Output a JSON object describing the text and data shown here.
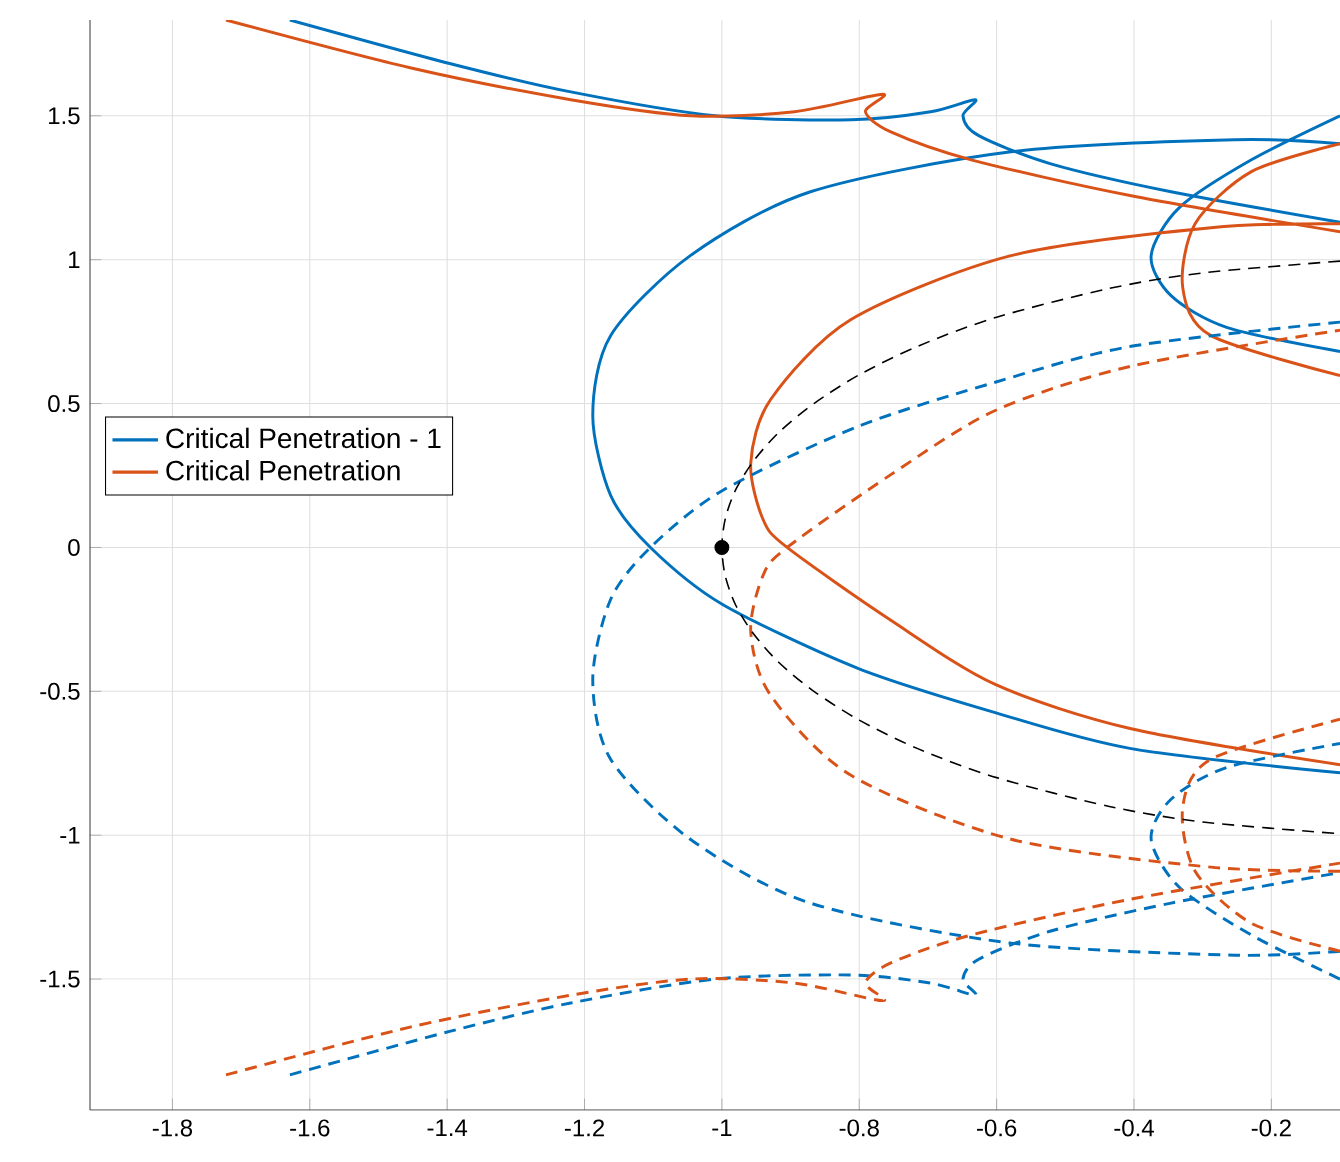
{
  "chart_data": {
    "type": "line",
    "xlim": [
      -1.92,
      -0.1
    ],
    "ylim": [
      -1.955,
      1.833
    ],
    "xticks": [
      -1.8,
      -1.6,
      -1.4,
      -1.2,
      -1,
      -0.8,
      -0.6,
      -0.4,
      -0.2
    ],
    "yticks": [
      -1.5,
      -1,
      -0.5,
      0,
      0.5,
      1,
      1.5
    ],
    "grid": true,
    "legend": "left",
    "series": [
      {
        "name": "Critical Penetration - 1",
        "line_style": "solid",
        "color": "#0072bd",
        "x": [
          -1.629,
          -1.395,
          -1.22,
          -1.01,
          -0.812,
          -0.696,
          -0.631,
          -0.649,
          -0.626,
          -0.521,
          -0.346,
          -0.1,
          null,
          -0.1,
          -0.253,
          -0.579,
          -0.871,
          -1.046,
          -1.162,
          -1.188,
          -1.162,
          -1.104,
          -0.999,
          -0.801,
          -0.602,
          -0.404,
          -0.1,
          null,
          -0.1,
          -0.229,
          -0.334,
          -0.375,
          -0.346,
          -0.264,
          -0.1
        ],
        "values": [
          1.833,
          1.681,
          1.583,
          1.5,
          1.486,
          1.514,
          1.556,
          1.5,
          1.431,
          1.333,
          1.236,
          1.13,
          null,
          1.403,
          1.417,
          1.375,
          1.236,
          1.014,
          0.736,
          0.458,
          0.181,
          0,
          -0.198,
          -0.421,
          -0.574,
          -0.699,
          -0.783,
          null,
          1.5,
          1.347,
          1.181,
          1.014,
          0.875,
          0.764,
          0.681
        ]
      },
      {
        "name": "Critical Penetration",
        "line_style": "solid",
        "color": "#d95319",
        "x": [
          -1.722,
          -1.454,
          -1.22,
          -1.045,
          -0.894,
          -0.766,
          -0.791,
          -0.754,
          -0.637,
          -0.404,
          -0.1,
          null,
          -0.1,
          -0.288,
          -0.579,
          -0.812,
          -0.929,
          -0.958,
          -0.94,
          -0.905,
          -0.754,
          -0.602,
          -0.404,
          -0.1,
          null,
          -0.1,
          -0.229,
          -0.311,
          -0.329,
          -0.288,
          -0.1
        ],
        "values": [
          1.833,
          1.667,
          1.556,
          1.5,
          1.514,
          1.575,
          1.514,
          1.444,
          1.347,
          1.222,
          1.097,
          null,
          1.125,
          1.111,
          1.014,
          0.792,
          0.514,
          0.292,
          0.097,
          0,
          -0.253,
          -0.476,
          -0.63,
          -0.755,
          null,
          1.403,
          1.306,
          1.125,
          0.903,
          0.736,
          0.597
        ]
      },
      {
        "line_style": "dashed",
        "color": "#0072bd",
        "x": [
          -1.629,
          -1.395,
          -1.22,
          -1.01,
          -0.812,
          -0.696,
          -0.631,
          -0.649,
          -0.626,
          -0.521,
          -0.346,
          -0.1,
          null,
          -0.1,
          -0.253,
          -0.579,
          -0.871,
          -1.046,
          -1.162,
          -1.188,
          -1.162,
          -1.104,
          -0.999,
          -0.801,
          -0.602,
          -0.404,
          -0.1,
          null,
          -0.1,
          -0.229,
          -0.334,
          -0.375,
          -0.346,
          -0.264,
          -0.1
        ],
        "values": [
          -1.833,
          -1.681,
          -1.583,
          -1.5,
          -1.486,
          -1.514,
          -1.556,
          -1.5,
          -1.431,
          -1.333,
          -1.236,
          -1.13,
          null,
          -1.403,
          -1.417,
          -1.375,
          -1.236,
          -1.014,
          -0.736,
          -0.458,
          -0.181,
          0,
          0.198,
          0.421,
          0.574,
          0.699,
          0.783,
          null,
          -1.5,
          -1.347,
          -1.181,
          -1.014,
          -0.875,
          -0.764,
          -0.681
        ]
      },
      {
        "line_style": "dashed",
        "color": "#d95319",
        "x": [
          -1.722,
          -1.454,
          -1.22,
          -1.045,
          -0.894,
          -0.766,
          -0.791,
          -0.754,
          -0.637,
          -0.404,
          -0.1,
          null,
          -0.1,
          -0.288,
          -0.579,
          -0.812,
          -0.929,
          -0.958,
          -0.94,
          -0.905,
          -0.754,
          -0.602,
          -0.404,
          -0.1,
          null,
          -0.1,
          -0.229,
          -0.311,
          -0.329,
          -0.288,
          -0.1
        ],
        "values": [
          -1.833,
          -1.667,
          -1.556,
          -1.5,
          -1.514,
          -1.575,
          -1.514,
          -1.444,
          -1.347,
          -1.222,
          -1.097,
          null,
          -1.125,
          -1.111,
          -1.014,
          -0.792,
          -0.514,
          -0.292,
          -0.097,
          0,
          0.253,
          0.476,
          0.63,
          0.755,
          null,
          -1.403,
          -1.306,
          -1.125,
          -0.903,
          -0.736,
          -0.597
        ]
      },
      {
        "line_style": "dashed",
        "color": "#000000",
        "x": [
          -0.1,
          -0.3,
          -0.436,
          -0.6,
          -0.714,
          -0.8,
          -0.866,
          -0.917,
          -0.954,
          -0.98,
          -0.995,
          -1,
          -0.995,
          -0.98,
          -0.954,
          -0.917,
          -0.866,
          -0.8,
          -0.714,
          -0.6,
          -0.436,
          -0.3,
          -0.1
        ],
        "values": [
          0.995,
          0.954,
          0.9,
          0.8,
          0.7,
          0.6,
          0.5,
          0.4,
          0.3,
          0.2,
          0.1,
          0,
          -0.1,
          -0.2,
          -0.3,
          -0.4,
          -0.5,
          -0.6,
          -0.7,
          -0.8,
          -0.9,
          -0.954,
          -0.995
        ]
      },
      {
        "type": "scatter",
        "marker": "circle",
        "color": "#000000",
        "x": [
          -1
        ],
        "values": [
          0
        ]
      }
    ]
  }
}
